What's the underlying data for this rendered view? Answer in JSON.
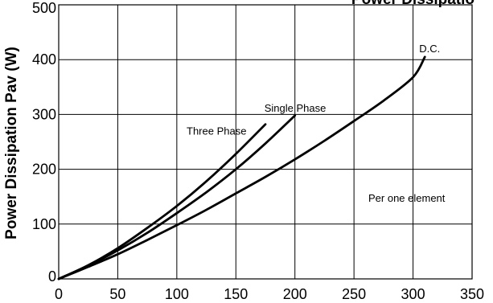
{
  "chart_data": {
    "type": "line",
    "title": "",
    "title_fragment": "Power Dissipatio",
    "ylabel": "Power Dissipation Pav (W)",
    "xlabel": "",
    "xlim": [
      0,
      350
    ],
    "ylim": [
      0,
      500
    ],
    "x_ticks": [
      0,
      50,
      100,
      150,
      200,
      250,
      300,
      350
    ],
    "y_ticks": [
      0,
      100,
      200,
      300,
      400,
      500
    ],
    "grid": true,
    "series": [
      {
        "name": "Three Phase",
        "x": [
          0,
          25,
          50,
          75,
          100,
          125,
          150,
          175
        ],
        "y": [
          0,
          25,
          56,
          93,
          133,
          178,
          228,
          282
        ]
      },
      {
        "name": "Single Phase",
        "x": [
          0,
          25,
          50,
          75,
          100,
          125,
          150,
          175,
          200
        ],
        "y": [
          0,
          24,
          52,
          84,
          120,
          158,
          200,
          247,
          298
        ]
      },
      {
        "name": "D.C.",
        "x": [
          0,
          25,
          50,
          75,
          100,
          125,
          150,
          175,
          200,
          225,
          250,
          275,
          300,
          310
        ],
        "y": [
          0,
          22,
          45,
          71,
          98,
          126,
          156,
          186,
          218,
          252,
          288,
          325,
          368,
          405
        ]
      }
    ],
    "annotations": [
      "Per one element"
    ]
  }
}
